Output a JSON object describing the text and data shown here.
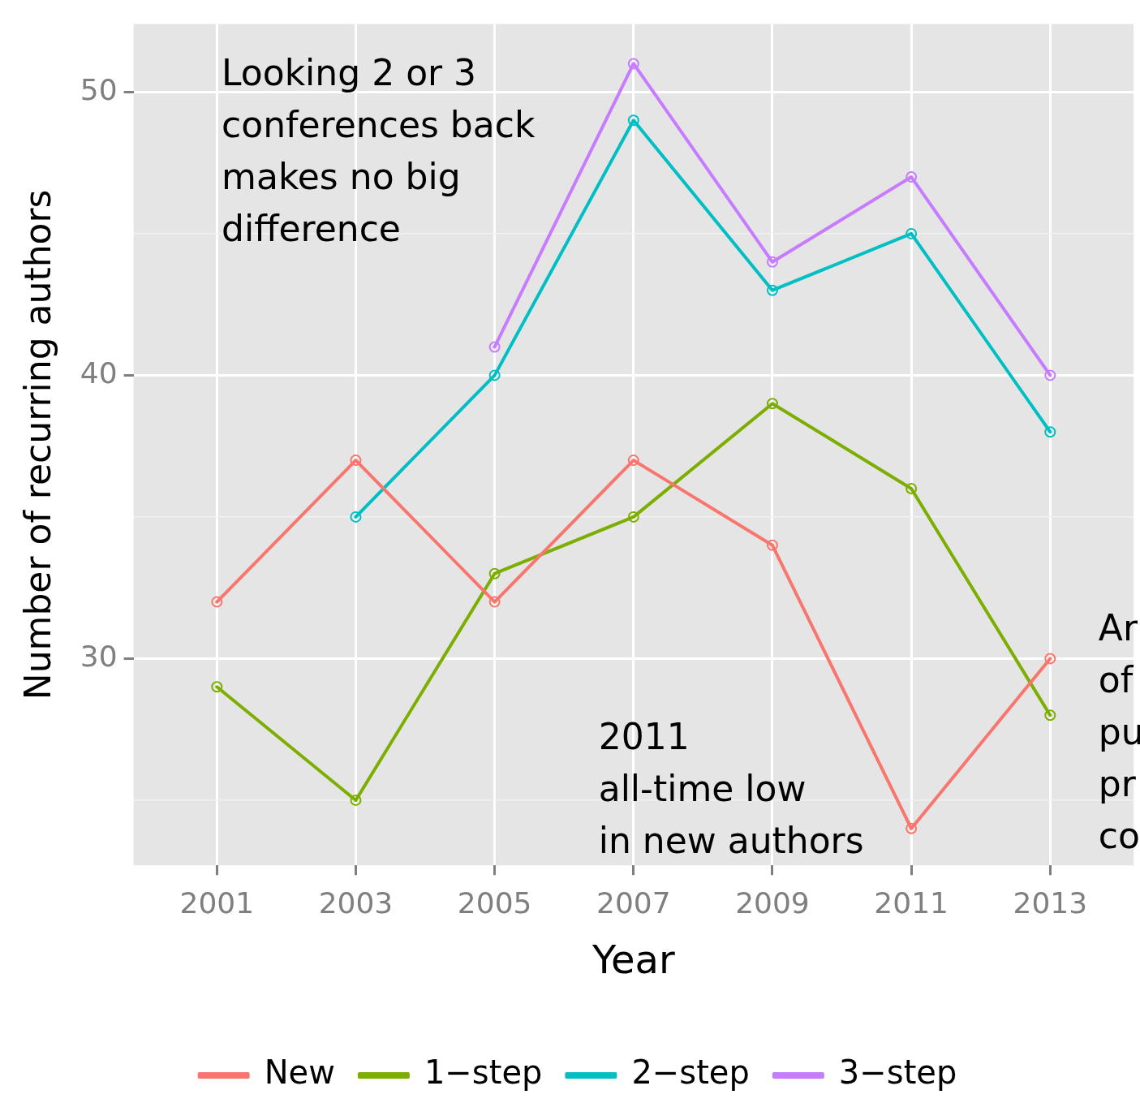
{
  "chart_data": {
    "type": "line",
    "xlabel": "Year",
    "ylabel": "Number of recurring authors",
    "x": [
      2001,
      2003,
      2005,
      2007,
      2009,
      2011,
      2013
    ],
    "series": [
      {
        "name": "New",
        "color": "#f8766d",
        "values": [
          32,
          37,
          32,
          37,
          34,
          24,
          30
        ]
      },
      {
        "name": "1−step",
        "color": "#7cae00",
        "values": [
          29,
          25,
          33,
          35,
          39,
          36,
          28
        ]
      },
      {
        "name": "2−step",
        "color": "#00bfc4",
        "values": [
          null,
          35,
          40,
          49,
          43,
          45,
          38
        ]
      },
      {
        "name": "3−step",
        "color": "#c77cff",
        "values": [
          null,
          null,
          41,
          51,
          44,
          47,
          40
        ]
      }
    ],
    "xlim": [
      1999.8,
      2014.2
    ],
    "xticks": [
      2001,
      2003,
      2005,
      2007,
      2009,
      2011,
      2013
    ],
    "ylim": [
      22.7,
      52.4
    ],
    "yticks": [
      {
        "value": 25,
        "label": null
      },
      30,
      {
        "value": 35,
        "label": null
      },
      40,
      {
        "value": 45,
        "label": null
      },
      50
    ],
    "grid": true,
    "legend": "bottom",
    "marker": "circle",
    "line_style": "solid",
    "annotations": [
      "Looking 2 or 3\nconferences back\nmakes no big\ndifference",
      "2011\nall-time low\nin new authors",
      "Ar\nof\npu\npr\nco"
    ]
  }
}
